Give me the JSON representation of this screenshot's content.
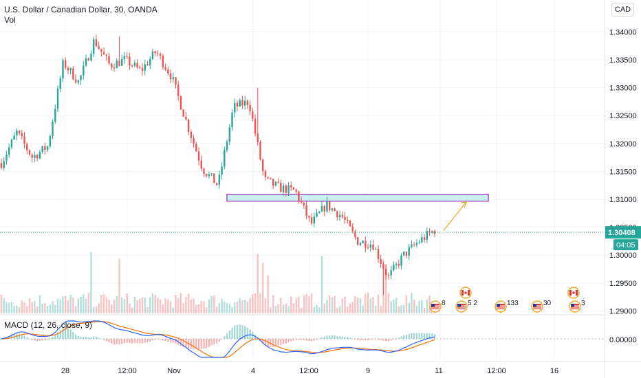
{
  "header": {
    "symbol_title": "U.S. Dollar / Canadian Dollar, 30, OANDA",
    "volume_label": "Vol",
    "currency_button": "CAD"
  },
  "macd_label": "MACD (12, 26, close, 9)",
  "colors": {
    "up": "#26a69a",
    "down": "#ef5350",
    "zone_fill": "#c9f0f7",
    "zone_border": "#9c27b0",
    "arrow": "#f5a623",
    "price_badge": "#26a69a",
    "macd_line": "#2962ff",
    "signal_line": "#ff6d00"
  },
  "price_axis": {
    "ticks": [
      "1.34000",
      "1.33500",
      "1.33000",
      "1.32500",
      "1.32000",
      "1.31500",
      "1.31000",
      "1.30500",
      "1.30000",
      "1.29500",
      "1.29000"
    ],
    "current_price": "1.30408",
    "countdown": "04:05"
  },
  "macd_axis": {
    "ticks": [
      "0.00000"
    ]
  },
  "time_axis": {
    "ticks": [
      "28",
      "12:00",
      "Nov",
      "4",
      "12:00",
      "9",
      "11",
      "12:00",
      "16"
    ]
  },
  "event_markers": [
    {
      "type": "us",
      "count": "8"
    },
    {
      "type": "us",
      "count": "5 2"
    },
    {
      "type": "ca",
      "count": ""
    },
    {
      "type": "us",
      "count": "133"
    },
    {
      "type": "us",
      "count": "30"
    },
    {
      "type": "us",
      "count": "3"
    },
    {
      "type": "ca",
      "count": ""
    }
  ],
  "chart_data": {
    "type": "candlestick",
    "symbol": "USDCAD",
    "interval": "30",
    "source": "OANDA",
    "price_range": [
      1.2855,
      1.3425
    ],
    "price_path": [
      {
        "t": "Oct 27",
        "price": 1.3165
      },
      {
        "t": "Oct 27",
        "price": 1.322
      },
      {
        "t": "Oct 28",
        "price": 1.3175
      },
      {
        "t": "Oct 28",
        "price": 1.3195
      },
      {
        "t": "Oct 29",
        "price": 1.3345
      },
      {
        "t": "Oct 29",
        "price": 1.331
      },
      {
        "t": "Oct 29 12:00",
        "price": 1.3385
      },
      {
        "t": "Oct 30",
        "price": 1.334
      },
      {
        "t": "Oct 30",
        "price": 1.335
      },
      {
        "t": "Oct 30",
        "price": 1.333
      },
      {
        "t": "Oct 31",
        "price": 1.3365
      },
      {
        "t": "Nov 2",
        "price": 1.332
      },
      {
        "t": "Nov 2",
        "price": 1.3235
      },
      {
        "t": "Nov 3",
        "price": 1.3155
      },
      {
        "t": "Nov 3",
        "price": 1.3125
      },
      {
        "t": "Nov 4",
        "price": 1.3265
      },
      {
        "t": "Nov 4",
        "price": 1.3275
      },
      {
        "t": "Nov 4",
        "price": 1.3135
      },
      {
        "t": "Nov 5",
        "price": 1.312
      },
      {
        "t": "Nov 5",
        "price": 1.3115
      },
      {
        "t": "Nov 5 12:00",
        "price": 1.3055
      },
      {
        "t": "Nov 6",
        "price": 1.309
      },
      {
        "t": "Nov 6",
        "price": 1.307
      },
      {
        "t": "Nov 6",
        "price": 1.3025
      },
      {
        "t": "Nov 6",
        "price": 1.302
      },
      {
        "t": "Nov 9",
        "price": 1.296
      },
      {
        "t": "Nov 9",
        "price": 1.3
      },
      {
        "t": "Nov 10",
        "price": 1.3025
      },
      {
        "t": "Nov 10",
        "price": 1.3045
      }
    ],
    "macd": {
      "fast": 12,
      "slow": 26,
      "source": "close",
      "signal": 9
    },
    "zone": {
      "price_low": 1.3097,
      "price_high": 1.3109,
      "from": "Nov 3",
      "to": "Nov 11 12:00"
    },
    "projection": {
      "from_price": 1.3042,
      "to_price": 1.3095,
      "from": "Nov 10",
      "to": "Nov 11 12:00"
    }
  }
}
